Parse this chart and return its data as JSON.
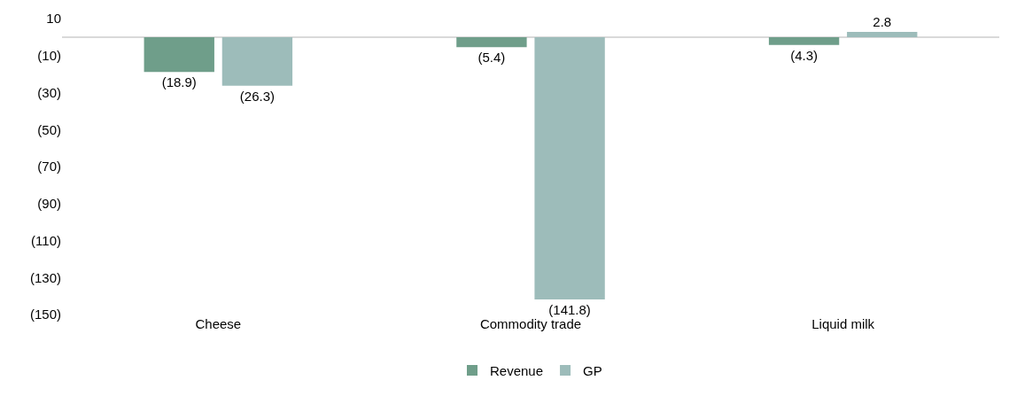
{
  "chart_data": {
    "type": "bar",
    "categories": [
      "Cheese",
      "Commodity trade",
      "Liquid milk"
    ],
    "series": [
      {
        "name": "Revenue",
        "color": "#6f9e8a",
        "values": [
          -18.9,
          -5.4,
          -4.3
        ],
        "value_labels": [
          "(18.9)",
          "(5.4)",
          "(4.3)"
        ]
      },
      {
        "name": "GP",
        "color": "#9dbcba",
        "values": [
          -26.3,
          -141.8,
          2.8
        ],
        "value_labels": [
          "(26.3)",
          "(141.8)",
          "2.8"
        ]
      }
    ],
    "ylim": [
      -150,
      10
    ],
    "yticks": [
      10,
      {
        "value": -10,
        "label": "(10)"
      },
      {
        "value": -30,
        "label": "(30)"
      },
      {
        "value": -50,
        "label": "(50)"
      },
      {
        "value": -70,
        "label": "(70)"
      },
      {
        "value": -90,
        "label": "(90)"
      },
      {
        "value": -110,
        "label": "(110)"
      },
      {
        "value": -130,
        "label": "(130)"
      },
      {
        "value": -150,
        "label": "(150)"
      }
    ],
    "grid": false,
    "legend": "bottom"
  }
}
